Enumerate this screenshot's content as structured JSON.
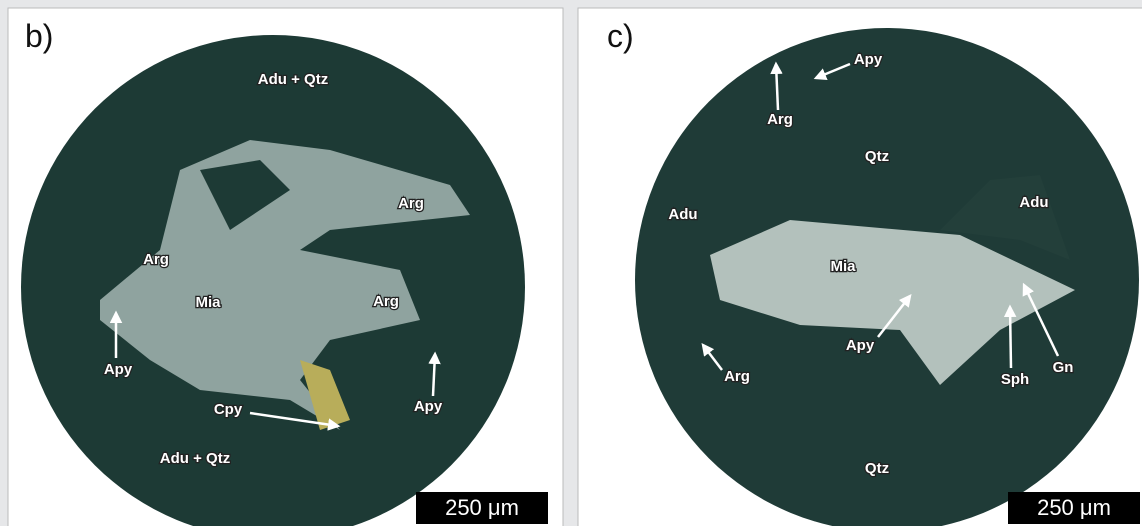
{
  "panels": [
    {
      "letter": "b)",
      "labels": [
        "Adu + Qtz",
        "Arg",
        "Arg",
        "Mia",
        "Arg",
        "Apy",
        "Cpy",
        "Apy",
        "Adu + Qtz"
      ],
      "scale_bar": "250 μm"
    },
    {
      "letter": "c)",
      "labels": [
        "Apy",
        "Arg",
        "Qtz",
        "Adu",
        "Adu",
        "Mia",
        "Apy",
        "Arg",
        "Sph",
        "Gn",
        "Qtz"
      ],
      "scale_bar": "250 μm"
    }
  ]
}
